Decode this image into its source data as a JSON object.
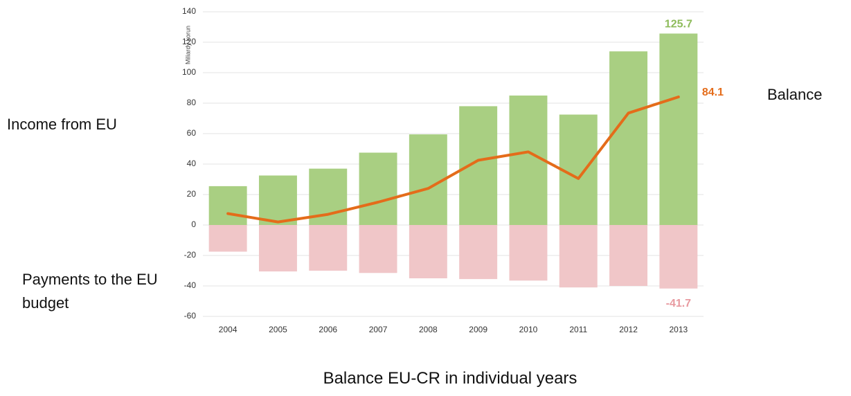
{
  "chart_data": {
    "type": "bar",
    "title": "Balance EU-CR in individual years",
    "ylabel": "Miliardy korun",
    "categories": [
      "2004",
      "2005",
      "2006",
      "2007",
      "2008",
      "2009",
      "2010",
      "2011",
      "2012",
      "2013"
    ],
    "series": [
      {
        "name": "Income from EU",
        "color": "#a9cf82",
        "label_color": "#8dbb5a",
        "values": [
          25.5,
          32.5,
          37,
          47.5,
          59.5,
          78,
          85,
          72.5,
          114,
          125.7
        ],
        "value_labels": [
          null,
          null,
          null,
          null,
          null,
          null,
          null,
          null,
          null,
          "125.7"
        ]
      },
      {
        "name": "Payments to the EU budget",
        "color": "#f0c6c8",
        "label_color": "#e89aa0",
        "values": [
          -17.5,
          -30.5,
          -30,
          -31.5,
          -35,
          -35.5,
          -36.5,
          -41,
          -40,
          -41.7
        ],
        "value_labels": [
          null,
          null,
          null,
          null,
          null,
          null,
          null,
          null,
          null,
          "-41.7"
        ]
      },
      {
        "name": "Balance",
        "type": "line",
        "color": "#e46c1a",
        "label_color": "#e46c1a",
        "values": [
          7.5,
          2,
          7,
          15,
          24,
          42.5,
          48,
          30.5,
          73.5,
          84.1
        ],
        "value_labels": [
          null,
          null,
          null,
          null,
          null,
          null,
          null,
          null,
          null,
          "84.1"
        ]
      }
    ],
    "ylim": [
      -60,
      140
    ],
    "yticks": [
      -60,
      -40,
      -20,
      0,
      20,
      40,
      60,
      80,
      100,
      120,
      140
    ],
    "grid": true
  }
}
